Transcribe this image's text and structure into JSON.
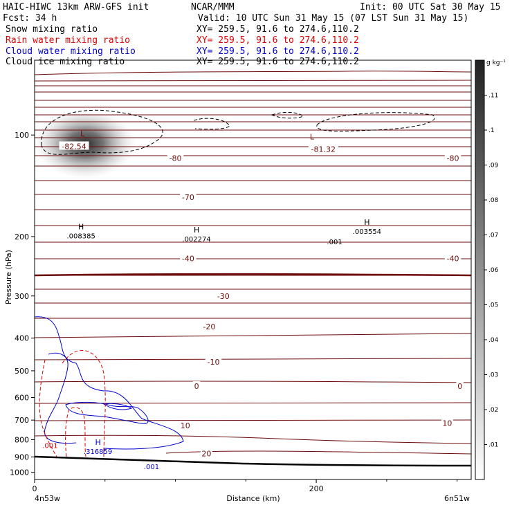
{
  "header": {
    "model": "HAIC-HIWC 13km ARW-GFS init",
    "org": "NCAR/MMM",
    "init": "Init: 00 UTC Sat 30 May 15",
    "fcst": "Fcst:   34 h",
    "valid": "Valid: 10 UTC Sun 31 May 15 (07 LST Sun 31 May 15)",
    "fields": [
      {
        "name": "Snow mixing ratio",
        "xy": "XY= 259.5, 91.6 to 274.6,110.2",
        "color": "#000000"
      },
      {
        "name": "Rain water mixing ratio",
        "xy": "XY= 259.5, 91.6 to 274.6,110.2",
        "color": "#dd0000"
      },
      {
        "name": "Cloud water mixing ratio",
        "xy": "XY= 259.5, 91.6 to 274.6,110.2",
        "color": "#0000cc"
      },
      {
        "name": "Cloud ice mixing ratio",
        "xy": "XY= 259.5, 91.6 to 274.6,110.2",
        "color": "#000000"
      }
    ]
  },
  "chart_data": {
    "type": "cross-section",
    "xlabel": "Distance (km)",
    "ylabel": "Pressure (hPa)",
    "x_ticks": [
      0,
      200
    ],
    "x_range_km": [
      0,
      310
    ],
    "y_ticks": [
      100,
      200,
      300,
      400,
      500,
      600,
      700,
      800,
      900,
      1000
    ],
    "y_range_hpa": [
      60,
      1050
    ],
    "y_scale": "log",
    "endpoints": {
      "left": "4n53w",
      "right": "6n51w"
    },
    "colorbar": {
      "unit": "g kg⁻¹",
      "levels": [
        0.01,
        0.02,
        0.03,
        0.04,
        0.05,
        0.06,
        0.07,
        0.08,
        0.09,
        0.1,
        0.11
      ],
      "labels": [
        ".01",
        ".02",
        ".03",
        ".04",
        ".05",
        ".06",
        ".07",
        ".08",
        ".09",
        ".1",
        ".11"
      ]
    },
    "temperature_contours": {
      "color": "#6e0a0a",
      "labels": [
        {
          "text": "-82.54",
          "x": 28,
          "p": 108
        },
        {
          "text": "-80",
          "x": 100,
          "p": 117
        },
        {
          "text": "-81.32",
          "x": 205,
          "p": 110
        },
        {
          "text": "-80",
          "x": 297,
          "p": 117
        },
        {
          "text": "-70",
          "x": 109,
          "p": 153
        },
        {
          "text": "-40",
          "x": 109,
          "p": 232
        },
        {
          "text": "-40",
          "x": 297,
          "p": 232
        },
        {
          "text": "-30",
          "x": 134,
          "p": 300
        },
        {
          "text": "-20",
          "x": 124,
          "p": 370
        },
        {
          "text": "-10",
          "x": 127,
          "p": 470
        },
        {
          "text": "0",
          "x": 115,
          "p": 555
        },
        {
          "text": "0",
          "x": 302,
          "p": 555
        },
        {
          "text": "10",
          "x": 107,
          "p": 727
        },
        {
          "text": "10",
          "x": 293,
          "p": 715
        },
        {
          "text": "20",
          "x": 122,
          "p": 880
        }
      ],
      "lows": [
        {
          "text": "L",
          "x": 34,
          "p": 99
        },
        {
          "text": "L",
          "x": 197,
          "p": 101
        }
      ]
    },
    "snow_max": [
      {
        "marker": "H",
        "value": ".008385",
        "x": 33,
        "p": 196
      },
      {
        "marker": "H",
        "value": ".002274",
        "x": 115,
        "p": 200
      },
      {
        "marker": "H",
        "value": ".003554",
        "x": 236,
        "p": 190
      }
    ],
    "snow_labels": [
      {
        "text": ".001",
        "x": 213,
        "p": 207
      }
    ],
    "cloud_water_max": {
      "marker": "H",
      "value": ".316859",
      "x": 45,
      "p": 830
    },
    "cloud_water_labels": [
      {
        "text": ".001",
        "x": 83,
        "p": 960
      }
    ],
    "rain_labels": [
      {
        "text": ".001",
        "x": 11,
        "p": 832
      }
    ]
  }
}
